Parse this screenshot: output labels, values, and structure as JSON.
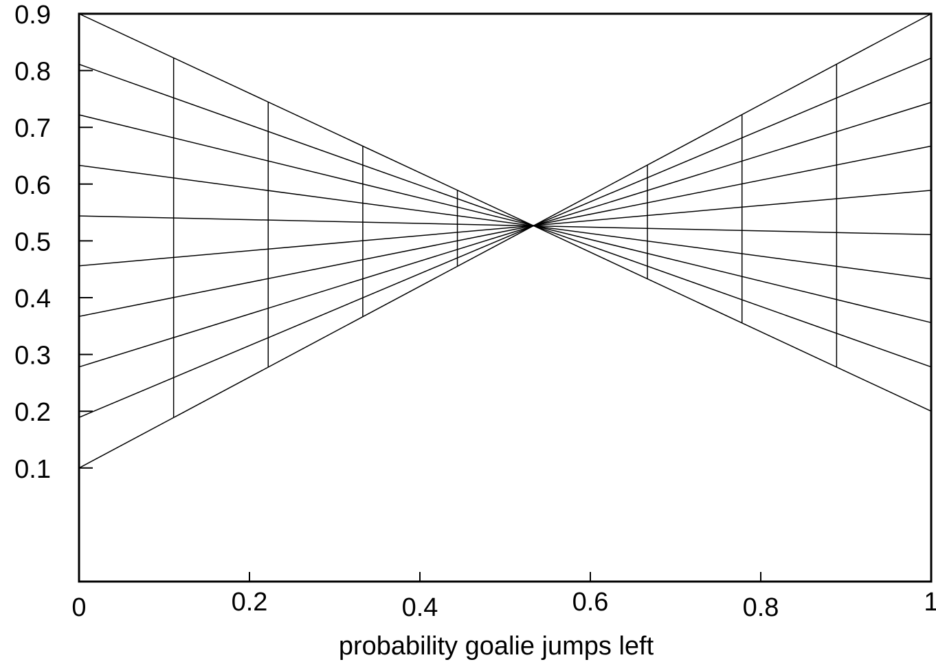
{
  "chart_data": {
    "type": "line",
    "title": "",
    "xlabel": "probability goalie jumps left",
    "ylabel": "",
    "xlim": [
      0,
      1
    ],
    "ylim": [
      -0.1,
      0.9
    ],
    "grid": false,
    "legend": "none",
    "x_ticks": [
      {
        "value": 0,
        "label": "0"
      },
      {
        "value": 0.2,
        "label": "0.2"
      },
      {
        "value": 0.4,
        "label": "0.4"
      },
      {
        "value": 0.6,
        "label": "0.6"
      },
      {
        "value": 0.8,
        "label": "0.8"
      },
      {
        "value": 1,
        "label": "1"
      }
    ],
    "y_ticks": [
      {
        "value": 0.1,
        "label": "0.1"
      },
      {
        "value": 0.2,
        "label": "0.2"
      },
      {
        "value": 0.3,
        "label": "0.3"
      },
      {
        "value": 0.4,
        "label": "0.4"
      },
      {
        "value": 0.5,
        "label": "0.5"
      },
      {
        "value": 0.6,
        "label": "0.6"
      },
      {
        "value": 0.7,
        "label": "0.7"
      },
      {
        "value": 0.8,
        "label": "0.8"
      },
      {
        "value": 0.9,
        "label": "0.9"
      }
    ],
    "series": [
      {
        "x": [
          0,
          1
        ],
        "y": [
          0.9,
          0.2
        ]
      },
      {
        "x": [
          0,
          1
        ],
        "y": [
          0.811,
          0.278
        ]
      },
      {
        "x": [
          0,
          1
        ],
        "y": [
          0.722,
          0.356
        ]
      },
      {
        "x": [
          0,
          1
        ],
        "y": [
          0.633,
          0.433
        ]
      },
      {
        "x": [
          0,
          1
        ],
        "y": [
          0.544,
          0.511
        ]
      },
      {
        "x": [
          0,
          1
        ],
        "y": [
          0.456,
          0.589
        ]
      },
      {
        "x": [
          0,
          1
        ],
        "y": [
          0.367,
          0.667
        ]
      },
      {
        "x": [
          0,
          1
        ],
        "y": [
          0.278,
          0.744
        ]
      },
      {
        "x": [
          0,
          1
        ],
        "y": [
          0.189,
          0.822
        ]
      },
      {
        "x": [
          0,
          1
        ],
        "y": [
          0.1,
          0.9
        ]
      }
    ],
    "vertical_segments": [
      {
        "x": 0.111,
        "y0": 0.189,
        "y1": 0.822
      },
      {
        "x": 0.222,
        "y0": 0.278,
        "y1": 0.744
      },
      {
        "x": 0.333,
        "y0": 0.367,
        "y1": 0.667
      },
      {
        "x": 0.444,
        "y0": 0.456,
        "y1": 0.589
      },
      {
        "x": 0.667,
        "y0": 0.433,
        "y1": 0.633
      },
      {
        "x": 0.778,
        "y0": 0.356,
        "y1": 0.722
      },
      {
        "x": 0.889,
        "y0": 0.278,
        "y1": 0.811
      }
    ]
  }
}
